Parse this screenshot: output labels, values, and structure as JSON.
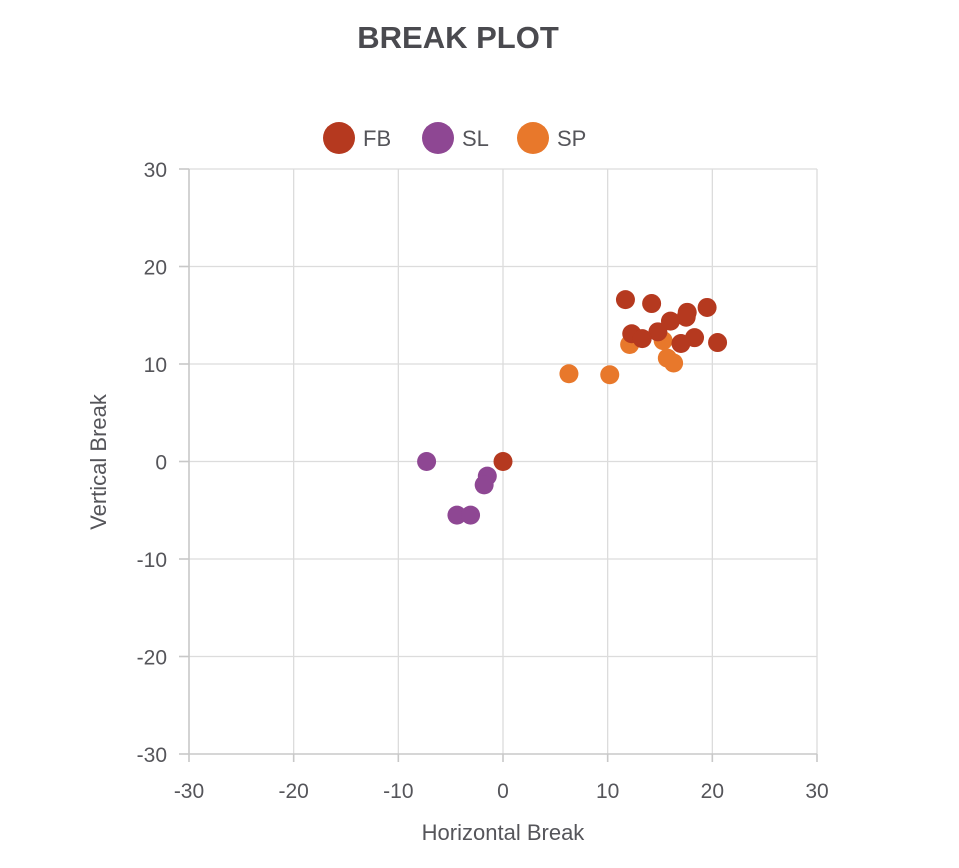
{
  "chart_data": {
    "type": "scatter",
    "title": "BREAK PLOT",
    "xlabel": "Horizontal Break",
    "ylabel": "Vertical Break",
    "xlim": [
      -30,
      30
    ],
    "ylim": [
      -30,
      30
    ],
    "xticks": [
      -30,
      -20,
      -10,
      0,
      10,
      20,
      30
    ],
    "yticks": [
      -30,
      -20,
      -10,
      0,
      10,
      20,
      30
    ],
    "grid": true,
    "legend_position": "top-center",
    "series": [
      {
        "name": "FB",
        "color": "#b5391f",
        "points": [
          [
            11.7,
            16.6
          ],
          [
            14.2,
            16.2
          ],
          [
            19.5,
            15.8
          ],
          [
            17.6,
            15.3
          ],
          [
            17.5,
            14.8
          ],
          [
            16.0,
            14.4
          ],
          [
            12.3,
            13.1
          ],
          [
            14.8,
            13.3
          ],
          [
            13.3,
            12.6
          ],
          [
            18.3,
            12.7
          ],
          [
            17.0,
            12.1
          ],
          [
            20.5,
            12.2
          ],
          [
            0.0,
            0.0
          ]
        ]
      },
      {
        "name": "SL",
        "color": "#8e4793",
        "points": [
          [
            -7.3,
            0.0
          ],
          [
            -1.5,
            -1.5
          ],
          [
            -1.8,
            -2.4
          ],
          [
            -4.4,
            -5.5
          ],
          [
            -3.1,
            -5.5
          ]
        ]
      },
      {
        "name": "SP",
        "color": "#e8782b",
        "points": [
          [
            6.3,
            9.0
          ],
          [
            10.2,
            8.9
          ],
          [
            12.1,
            12.0
          ],
          [
            15.3,
            12.4
          ],
          [
            15.7,
            10.6
          ],
          [
            16.3,
            10.1
          ]
        ]
      }
    ]
  }
}
